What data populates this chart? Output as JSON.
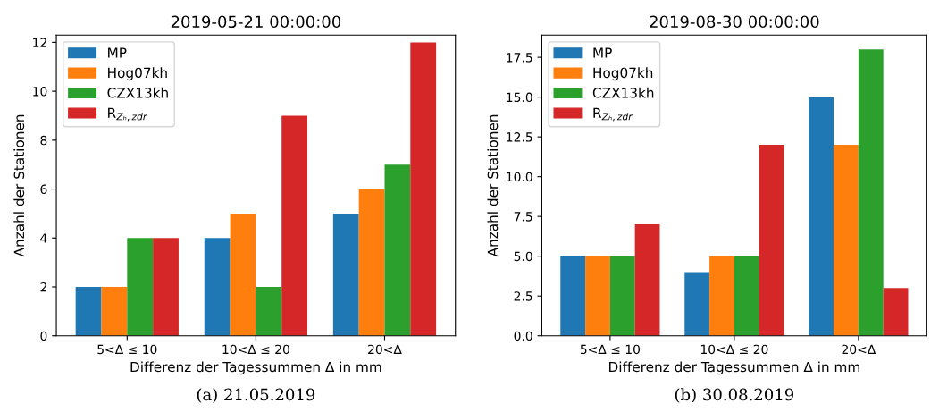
{
  "chart_data": [
    {
      "type": "bar",
      "title": "2019-05-21 00:00:00",
      "xlabel": "Differenz der Tagessummen Δ in mm",
      "ylabel": "Anzahl der Stationen",
      "categories": [
        "5<Δ ≤ 10",
        "10<Δ ≤ 20",
        "20<Δ"
      ],
      "series": [
        {
          "name": "MP",
          "color": "#1f77b4",
          "values": [
            2,
            4,
            5
          ]
        },
        {
          "name": "Hog07kh",
          "color": "#ff7f0e",
          "values": [
            2,
            5,
            6
          ]
        },
        {
          "name": "CZX13kh",
          "color": "#2ca02c",
          "values": [
            4,
            2,
            7
          ]
        },
        {
          "name": "R$_{Zₕ,zdr}$",
          "color": "#d62728",
          "values": [
            4,
            9,
            12
          ]
        }
      ],
      "ylim": [
        0,
        12.3
      ],
      "yticks": [
        0,
        2,
        4,
        6,
        8,
        10,
        12
      ],
      "grid": false,
      "legend": "top left",
      "annotations": [
        "(a) 21.05.2019"
      ]
    },
    {
      "type": "bar",
      "title": "2019-08-30 00:00:00",
      "xlabel": "Differenz der Tagessummen Δ in mm",
      "ylabel": "Anzahl der Stationen",
      "categories": [
        "5<Δ ≤ 10",
        "10<Δ ≤ 20",
        "20<Δ"
      ],
      "series": [
        {
          "name": "MP",
          "color": "#1f77b4",
          "values": [
            5,
            4,
            15
          ]
        },
        {
          "name": "Hog07kh",
          "color": "#ff7f0e",
          "values": [
            5,
            5,
            12
          ]
        },
        {
          "name": "CZX13kh",
          "color": "#2ca02c",
          "values": [
            5,
            5,
            18
          ]
        },
        {
          "name": "R$_{Zₕ,zdr}$",
          "color": "#d62728",
          "values": [
            7,
            12,
            3
          ]
        }
      ],
      "ylim": [
        0,
        18.9
      ],
      "yticks": [
        {
          "value": 0,
          "label": "0.0"
        },
        {
          "value": 2.5,
          "label": "2.5"
        },
        {
          "value": 5,
          "label": "5.0"
        },
        {
          "value": 7.5,
          "label": "7.5"
        },
        {
          "value": 10,
          "label": "10.0"
        },
        {
          "value": 12.5,
          "label": "12.5"
        },
        {
          "value": 15,
          "label": "15.0"
        },
        {
          "value": 17.5,
          "label": "17.5"
        }
      ],
      "grid": false,
      "legend": "top left",
      "annotations": [
        "(b) 30.08.2019"
      ]
    }
  ]
}
